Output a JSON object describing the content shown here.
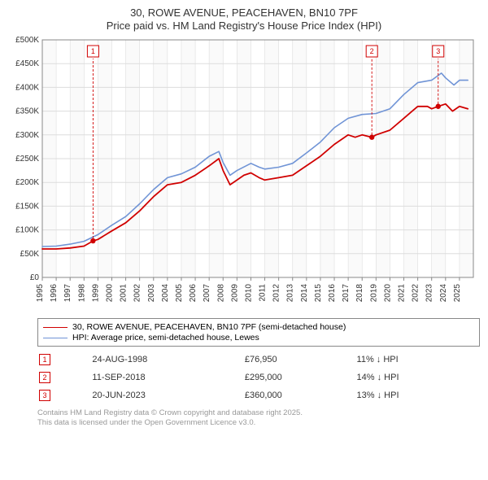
{
  "title": {
    "line1": "30, ROWE AVENUE, PEACEHAVEN, BN10 7PF",
    "line2": "Price paid vs. HM Land Registry's House Price Index (HPI)"
  },
  "chart": {
    "type": "line",
    "background_color": "#ffffff",
    "plot_border_color": "#888888",
    "grid_color": "#dddddd",
    "band_colors": [
      "#fafafa",
      "#ffffff"
    ],
    "x": {
      "min": 1995,
      "max": 2026,
      "ticks": [
        1995,
        1996,
        1997,
        1998,
        1999,
        2000,
        2001,
        2002,
        2003,
        2004,
        2005,
        2006,
        2007,
        2008,
        2009,
        2010,
        2011,
        2012,
        2013,
        2014,
        2015,
        2016,
        2017,
        2018,
        2019,
        2020,
        2021,
        2022,
        2023,
        2024,
        2025
      ],
      "tick_labels": [
        "1995",
        "1996",
        "1997",
        "1998",
        "1999",
        "2000",
        "2001",
        "2002",
        "2003",
        "2004",
        "2005",
        "2006",
        "2007",
        "2008",
        "2009",
        "2010",
        "2011",
        "2012",
        "2013",
        "2014",
        "2015",
        "2016",
        "2017",
        "2018",
        "2019",
        "2020",
        "2021",
        "2022",
        "2023",
        "2024",
        "2025"
      ],
      "tick_rotation": -90,
      "tick_fontsize": 10
    },
    "y": {
      "min": 0,
      "max": 500000,
      "ticks": [
        0,
        50000,
        100000,
        150000,
        200000,
        250000,
        300000,
        350000,
        400000,
        450000,
        500000
      ],
      "tick_labels": [
        "£0",
        "£50K",
        "£100K",
        "£150K",
        "£200K",
        "£250K",
        "£300K",
        "£350K",
        "£400K",
        "£450K",
        "£500K"
      ],
      "tick_fontsize": 10
    },
    "series": [
      {
        "name": "price_paid",
        "label": "30, ROWE AVENUE, PEACEHAVEN, BN10 7PF (semi-detached house)",
        "color": "#d00000",
        "line_width": 1.8,
        "xy": [
          [
            1995,
            60000
          ],
          [
            1996,
            60000
          ],
          [
            1997,
            62000
          ],
          [
            1998,
            66000
          ],
          [
            1998.65,
            76950
          ],
          [
            1999,
            80000
          ],
          [
            2000,
            98000
          ],
          [
            2001,
            115000
          ],
          [
            2002,
            140000
          ],
          [
            2003,
            170000
          ],
          [
            2004,
            195000
          ],
          [
            2005,
            200000
          ],
          [
            2006,
            215000
          ],
          [
            2007,
            235000
          ],
          [
            2007.7,
            250000
          ],
          [
            2008,
            225000
          ],
          [
            2008.5,
            195000
          ],
          [
            2009,
            205000
          ],
          [
            2009.5,
            215000
          ],
          [
            2010,
            220000
          ],
          [
            2010.6,
            210000
          ],
          [
            2011,
            205000
          ],
          [
            2012,
            210000
          ],
          [
            2013,
            215000
          ],
          [
            2014,
            235000
          ],
          [
            2015,
            255000
          ],
          [
            2016,
            280000
          ],
          [
            2017,
            300000
          ],
          [
            2017.5,
            295000
          ],
          [
            2018,
            300000
          ],
          [
            2018.7,
            295000
          ],
          [
            2019,
            300000
          ],
          [
            2020,
            310000
          ],
          [
            2021,
            335000
          ],
          [
            2022,
            360000
          ],
          [
            2022.7,
            360000
          ],
          [
            2023,
            355000
          ],
          [
            2023.47,
            360000
          ],
          [
            2024,
            365000
          ],
          [
            2024.5,
            350000
          ],
          [
            2025,
            360000
          ],
          [
            2025.6,
            355000
          ]
        ]
      },
      {
        "name": "hpi",
        "label": "HPI: Average price, semi-detached house, Lewes",
        "color": "#7094d6",
        "line_width": 1.6,
        "xy": [
          [
            1995,
            65000
          ],
          [
            1996,
            66000
          ],
          [
            1997,
            70000
          ],
          [
            1998,
            76000
          ],
          [
            1999,
            90000
          ],
          [
            2000,
            110000
          ],
          [
            2001,
            128000
          ],
          [
            2002,
            155000
          ],
          [
            2003,
            185000
          ],
          [
            2004,
            210000
          ],
          [
            2005,
            218000
          ],
          [
            2006,
            232000
          ],
          [
            2007,
            255000
          ],
          [
            2007.7,
            265000
          ],
          [
            2008,
            242000
          ],
          [
            2008.5,
            215000
          ],
          [
            2009,
            225000
          ],
          [
            2010,
            240000
          ],
          [
            2010.6,
            232000
          ],
          [
            2011,
            228000
          ],
          [
            2012,
            232000
          ],
          [
            2013,
            240000
          ],
          [
            2014,
            262000
          ],
          [
            2015,
            285000
          ],
          [
            2016,
            315000
          ],
          [
            2017,
            335000
          ],
          [
            2018,
            343000
          ],
          [
            2019,
            345000
          ],
          [
            2020,
            355000
          ],
          [
            2021,
            385000
          ],
          [
            2022,
            410000
          ],
          [
            2023,
            415000
          ],
          [
            2023.7,
            430000
          ],
          [
            2024,
            420000
          ],
          [
            2024.6,
            405000
          ],
          [
            2025,
            415000
          ],
          [
            2025.6,
            415000
          ]
        ]
      }
    ],
    "transaction_markers": [
      {
        "n": 1,
        "x": 1998.65,
        "y": 76950
      },
      {
        "n": 2,
        "x": 2018.7,
        "y": 295000
      },
      {
        "n": 3,
        "x": 2023.47,
        "y": 360000
      }
    ],
    "marker_dot_color": "#d00000",
    "marker_box_border": "#d00000",
    "marker_text_color": "#d00000"
  },
  "legend": {
    "border_color": "#888888",
    "font_size": 10.5
  },
  "transactions": {
    "rows": [
      {
        "n": "1",
        "date": "24-AUG-1998",
        "price": "£76,950",
        "delta": "11% ↓ HPI"
      },
      {
        "n": "2",
        "date": "11-SEP-2018",
        "price": "£295,000",
        "delta": "14% ↓ HPI"
      },
      {
        "n": "3",
        "date": "20-JUN-2023",
        "price": "£360,000",
        "delta": "13% ↓ HPI"
      }
    ],
    "font_size": 11
  },
  "footer": {
    "line1": "Contains HM Land Registry data © Crown copyright and database right 2025.",
    "line2": "This data is licensed under the Open Government Licence v3.0.",
    "color": "#999999",
    "font_size": 9.5
  }
}
